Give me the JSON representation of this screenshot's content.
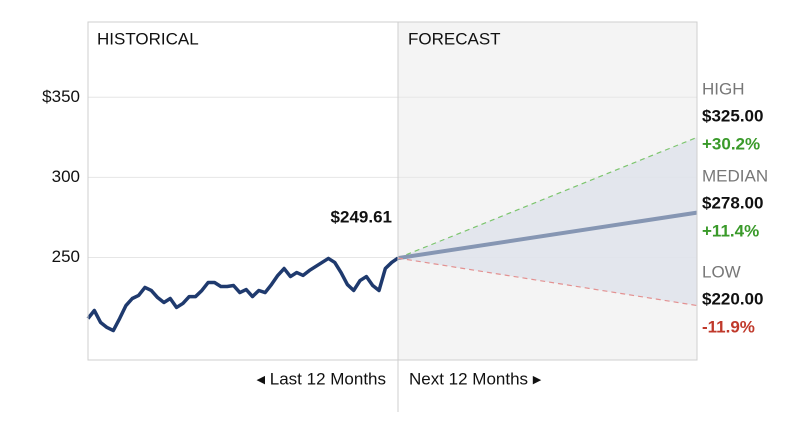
{
  "chart_data": {
    "type": "forecast",
    "historical_label": "HISTORICAL",
    "forecast_label": "FORECAST",
    "x_left_label": "◂ Last 12 Months",
    "x_right_label": "Next 12 Months ▸",
    "ylim": [
      186,
      397
    ],
    "yticks": [
      {
        "value": 350,
        "label": "$350"
      },
      300,
      250
    ],
    "grid": true,
    "series": [
      {
        "color": "#1f3a6e",
        "values": [
          211.9,
          216.9,
          209.4,
          206.3,
          204.4,
          211.9,
          220,
          224.4,
          226.3,
          231.3,
          229.4,
          225,
          221.9,
          224.4,
          218.8,
          221.3,
          225.6,
          225.6,
          229.4,
          234.4,
          234.4,
          231.9,
          231.9,
          232.5,
          228.1,
          230,
          225.6,
          229.4,
          228.1,
          233.1,
          238.8,
          243.1,
          238.1,
          240.6,
          238.8,
          241.9,
          244.4,
          246.9,
          249.4,
          246.9,
          240.6,
          233.1,
          229.4,
          235.6,
          238.1,
          232.5,
          229.4,
          243.1,
          246.9,
          249.61
        ],
        "value_labels": [
          null,
          null,
          null,
          null,
          null,
          null,
          null,
          null,
          null,
          null,
          null,
          null,
          null,
          null,
          null,
          null,
          null,
          null,
          null,
          null,
          null,
          null,
          null,
          null,
          null,
          null,
          null,
          null,
          null,
          null,
          null,
          null,
          null,
          null,
          null,
          null,
          null,
          null,
          null,
          null,
          null,
          null,
          null,
          null,
          null,
          null,
          null,
          null,
          null,
          "$249.61"
        ]
      }
    ],
    "forecast": [
      {
        "name": "HIGH",
        "value": 325.0,
        "value_label": "$325.00",
        "change": 30.2,
        "change_label": "+30.2%",
        "color": "#7cc56d",
        "change_color": "#3a9a2a"
      },
      {
        "name": "MEDIAN",
        "value": 278.0,
        "value_label": "$278.00",
        "change": 11.4,
        "change_label": "+11.4%",
        "color": "#8696b3",
        "change_color": "#3a9a2a"
      },
      {
        "name": "LOW",
        "value": 220.0,
        "value_label": "$220.00",
        "change": -11.9,
        "change_label": "-11.9%",
        "color": "#e39191",
        "change_color": "#c0392b"
      }
    ],
    "band_color": "#dfe3eb"
  }
}
